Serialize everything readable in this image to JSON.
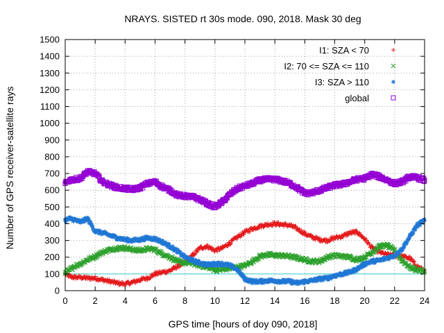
{
  "chart_data": {
    "type": "scatter",
    "title": "NRAYS. SISTED rt 30s mode. 090, 2018. Mask 30 deg",
    "xlabel": "GPS time [hours of doy 090, 2018]",
    "ylabel": "Number of GPS receiver-satellite rays",
    "xlim": [
      0,
      24
    ],
    "ylim": [
      0,
      1500
    ],
    "xticks": [
      0,
      2,
      4,
      6,
      8,
      10,
      12,
      14,
      16,
      18,
      20,
      22,
      24
    ],
    "yticks": [
      0,
      100,
      200,
      300,
      400,
      500,
      600,
      700,
      800,
      900,
      1000,
      1100,
      1200,
      1300,
      1400,
      1500
    ],
    "grid": true,
    "legend_position": "top-right",
    "reference_line": {
      "y": 100,
      "color": "#33cccc"
    },
    "series": [
      {
        "name": "I1: SZA < 70",
        "marker": "+",
        "color": "#e41a1c",
        "x": [
          0,
          0.3,
          0.6,
          1,
          1.5,
          2,
          2.5,
          3,
          3.5,
          4,
          4.5,
          5,
          5.5,
          6,
          6.5,
          7,
          7.5,
          8,
          8.5,
          9,
          9.5,
          10,
          10.5,
          11,
          11.5,
          12,
          12.5,
          13,
          13.5,
          14,
          14.5,
          15,
          15.5,
          16,
          16.5,
          17,
          17.5,
          18,
          18.5,
          19,
          19.5,
          20,
          20.5,
          21,
          21.5,
          22,
          22.5,
          23,
          23.5,
          24
        ],
        "values": [
          100,
          85,
          80,
          80,
          75,
          75,
          65,
          55,
          45,
          40,
          50,
          65,
          75,
          100,
          110,
          120,
          145,
          170,
          210,
          255,
          265,
          240,
          255,
          285,
          320,
          350,
          370,
          385,
          395,
          400,
          395,
          390,
          370,
          340,
          320,
          305,
          300,
          315,
          325,
          345,
          350,
          310,
          255,
          230,
          215,
          210,
          205,
          195,
          145,
          120
        ]
      },
      {
        "name": "I2: 70 <= SZA <= 110",
        "marker": "x",
        "color": "#2ca02c",
        "x": [
          0,
          0.3,
          0.6,
          1,
          1.5,
          2,
          2.5,
          3,
          3.5,
          4,
          4.5,
          5,
          5.5,
          6,
          6.5,
          7,
          7.5,
          8,
          8.5,
          9,
          9.5,
          10,
          10.5,
          11,
          11.5,
          12,
          12.5,
          13,
          13.5,
          14,
          14.5,
          15,
          15.5,
          16,
          16.5,
          17,
          17.5,
          18,
          18.5,
          19,
          19.5,
          20,
          20.5,
          21,
          21.5,
          22,
          22.5,
          23,
          23.5,
          24
        ],
        "values": [
          100,
          125,
          145,
          160,
          185,
          205,
          230,
          245,
          255,
          255,
          245,
          240,
          250,
          245,
          220,
          200,
          175,
          165,
          165,
          150,
          140,
          125,
          125,
          135,
          140,
          150,
          175,
          205,
          215,
          210,
          210,
          205,
          195,
          185,
          175,
          175,
          200,
          210,
          205,
          200,
          185,
          200,
          230,
          265,
          270,
          240,
          180,
          140,
          125,
          115
        ]
      },
      {
        "name": "I3: SZA > 110",
        "marker": "*",
        "color": "#1f77d4",
        "x": [
          0,
          0.3,
          0.6,
          1,
          1.5,
          2,
          2.5,
          3,
          3.5,
          4,
          4.5,
          5,
          5.5,
          6,
          6.5,
          7,
          7.5,
          8,
          8.5,
          9,
          9.5,
          10,
          10.5,
          11,
          11.5,
          12,
          12.5,
          13,
          13.5,
          14,
          14.5,
          15,
          15.5,
          16,
          16.5,
          17,
          17.5,
          18,
          18.5,
          19,
          19.5,
          20,
          20.5,
          21,
          21.5,
          22,
          22.5,
          23,
          23.5,
          24
        ],
        "values": [
          420,
          430,
          425,
          410,
          430,
          355,
          345,
          330,
          315,
          305,
          300,
          305,
          315,
          310,
          290,
          265,
          235,
          200,
          180,
          165,
          155,
          160,
          160,
          150,
          125,
          70,
          55,
          55,
          60,
          60,
          55,
          55,
          45,
          55,
          60,
          70,
          75,
          90,
          100,
          110,
          130,
          160,
          175,
          180,
          195,
          210,
          250,
          320,
          390,
          420
        ]
      },
      {
        "name": "global",
        "marker": "square",
        "color": "#9400d3",
        "x": [
          0,
          0.3,
          0.6,
          1,
          1.5,
          2,
          2.5,
          3,
          3.5,
          4,
          4.5,
          5,
          5.5,
          6,
          6.5,
          7,
          7.5,
          8,
          8.5,
          9,
          9.5,
          10,
          10.5,
          11,
          11.5,
          12,
          12.5,
          13,
          13.5,
          14,
          14.5,
          15,
          15.5,
          16,
          16.5,
          17,
          17.5,
          18,
          18.5,
          19,
          19.5,
          20,
          20.5,
          21,
          21.5,
          22,
          22.5,
          23,
          23.5,
          24
        ],
        "values": [
          640,
          660,
          665,
          670,
          710,
          700,
          650,
          630,
          615,
          610,
          605,
          615,
          640,
          650,
          620,
          600,
          570,
          565,
          560,
          545,
          520,
          500,
          530,
          575,
          610,
          625,
          640,
          660,
          665,
          665,
          655,
          640,
          615,
          580,
          585,
          600,
          615,
          630,
          635,
          650,
          665,
          670,
          695,
          680,
          660,
          640,
          650,
          680,
          675,
          660
        ]
      }
    ]
  }
}
